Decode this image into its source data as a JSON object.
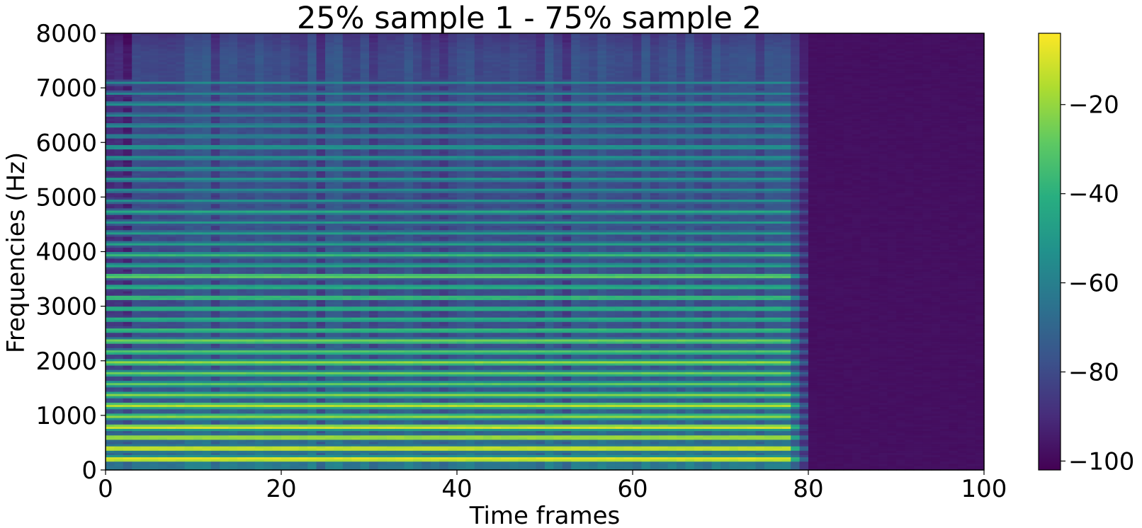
{
  "chart_data": {
    "type": "heatmap",
    "title": "25% sample 1 - 75% sample 2",
    "xlabel": "Time frames",
    "ylabel": "Frequencies (Hz)",
    "xlim": [
      0,
      100
    ],
    "ylim": [
      0,
      8000
    ],
    "x_ticks": [
      0,
      20,
      40,
      60,
      80,
      100
    ],
    "y_ticks": [
      0,
      1000,
      2000,
      3000,
      4000,
      5000,
      6000,
      7000,
      8000
    ],
    "colormap": "viridis",
    "colorbar": {
      "range": [
        -102,
        -4
      ],
      "ticks": [
        -20,
        -40,
        -60,
        -80,
        -100
      ],
      "tick_labels": [
        "−20",
        "−40",
        "−60",
        "−80",
        "−100"
      ]
    },
    "signal_end_frame": 80,
    "silence_level_db": -98,
    "harmonic_bands_hz": [
      205,
      400,
      600,
      790,
      985,
      1185,
      1380,
      1580,
      1775,
      1975,
      2170,
      2370,
      2565,
      2765,
      2960,
      3160,
      3355,
      3555,
      3750,
      3945,
      4145,
      4345,
      4540,
      4735,
      4935,
      5130,
      5330,
      5525,
      5725,
      5920,
      6120,
      6315,
      6510,
      6710,
      6905,
      7100
    ],
    "harmonic_peak_db": [
      -6,
      -8,
      -14,
      -10,
      -20,
      -14,
      -22,
      -28,
      -26,
      -20,
      -30,
      -24,
      -34,
      -38,
      -36,
      -32,
      -38,
      -26,
      -44,
      -36,
      -46,
      -48,
      -50,
      -42,
      -52,
      -54,
      -50,
      -52,
      -50,
      -48,
      -56,
      -54,
      -58,
      -52,
      -58,
      -56
    ],
    "grid": false,
    "legend": "none"
  }
}
